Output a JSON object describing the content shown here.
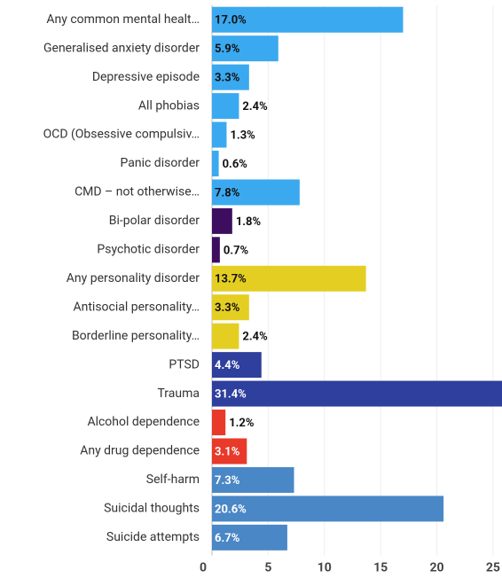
{
  "chart_data": {
    "type": "hbar",
    "categories": [
      "Any common mental healt…",
      "Generalised anxiety disorder",
      "Depressive episode",
      "All phobias",
      "OCD (Obsessive compulsiv…",
      "Panic disorder",
      "CMD – not otherwise…",
      "Bi-polar disorder",
      "Psychotic disorder",
      "Any personality disorder",
      "Antisocial personality…",
      "Borderline personality…",
      "PTSD",
      "Trauma",
      "Alcohol dependence",
      "Any drug dependence",
      "Self-harm",
      "Suicidal thoughts",
      "Suicide attempts"
    ],
    "values": [
      17.0,
      5.9,
      3.3,
      2.4,
      1.3,
      0.6,
      7.8,
      1.8,
      0.7,
      13.7,
      3.3,
      2.4,
      4.4,
      31.4,
      1.2,
      3.1,
      7.3,
      20.6,
      6.7
    ],
    "value_labels": [
      "17.0%",
      "5.9%",
      "3.3%",
      "2.4%",
      "1.3%",
      "0.6%",
      "7.8%",
      "1.8%",
      "0.7%",
      "13.7%",
      "3.3%",
      "2.4%",
      "4.4%",
      "31.4%",
      "1.2%",
      "3.1%",
      "7.3%",
      "20.6%",
      "6.7%"
    ],
    "colors": [
      "#3ba9ef",
      "#3ba9ef",
      "#3ba9ef",
      "#3ba9ef",
      "#3ba9ef",
      "#3ba9ef",
      "#3ba9ef",
      "#3d0e5f",
      "#3d0e5f",
      "#e5ce22",
      "#e5ce22",
      "#e5ce22",
      "#2e3f9d",
      "#2e3f9d",
      "#e8392b",
      "#e8392b",
      "#4a87c6",
      "#4a87c6",
      "#4a87c6"
    ],
    "label_colors": [
      "#111",
      "#111",
      "#111",
      "#111",
      "#111",
      "#111",
      "#111",
      "#fff",
      "#fff",
      "#111",
      "#111",
      "#111",
      "#fff",
      "#fff",
      "#fff",
      "#fff",
      "#fff",
      "#fff",
      "#fff"
    ],
    "xlim": [
      0,
      25.8
    ],
    "xticks": [
      0,
      5,
      10,
      15,
      20,
      25
    ]
  }
}
